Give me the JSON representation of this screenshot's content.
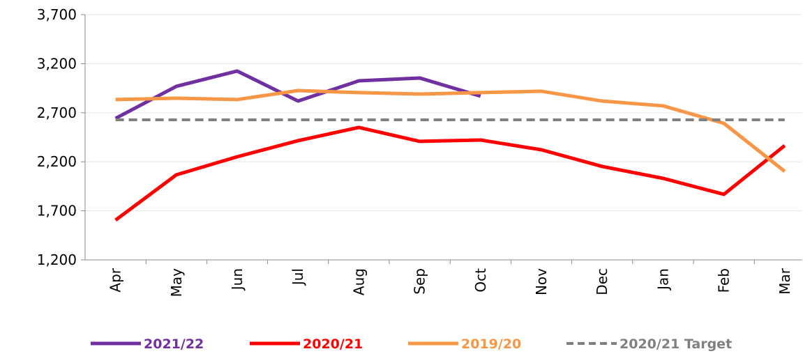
{
  "chart_data": {
    "type": "line",
    "categories": [
      "Apr",
      "May",
      "Jun",
      "Jul",
      "Aug",
      "Sep",
      "Oct",
      "Nov",
      "Dec",
      "Jan",
      "Feb",
      "Mar"
    ],
    "series": [
      {
        "name": "2021/22",
        "color": "#7030a0",
        "values": [
          2642,
          2969,
          3125,
          2819,
          3025,
          3054,
          2869,
          null,
          null,
          null,
          null,
          null
        ]
      },
      {
        "name": "2020/21",
        "color": "#ff0000",
        "values": [
          1605,
          2067,
          2251,
          2415,
          2550,
          2408,
          2422,
          2322,
          2152,
          2031,
          1868,
          2365
        ]
      },
      {
        "name": "2019/20",
        "color": "#f79646",
        "values": [
          2834,
          2848,
          2834,
          2926,
          2905,
          2890,
          2905,
          2919,
          2819,
          2770,
          2592,
          2102
        ]
      },
      {
        "name": "2020/21 Target",
        "color": "#808080",
        "dashed": true,
        "values": [
          2628,
          2628,
          2628,
          2628,
          2628,
          2628,
          2628,
          2628,
          2628,
          2628,
          2628,
          2628
        ]
      }
    ],
    "ylim": [
      1200,
      3700
    ],
    "yticks": [
      {
        "value": 1200,
        "label": "1,200"
      },
      {
        "value": 1700,
        "label": "1,700"
      },
      {
        "value": 2200,
        "label": "2,200"
      },
      {
        "value": 2700,
        "label": "2,700"
      },
      {
        "value": 3200,
        "label": "3,200"
      },
      {
        "value": 3700,
        "label": "3,700"
      }
    ],
    "grid": true,
    "legend": "bottom"
  }
}
